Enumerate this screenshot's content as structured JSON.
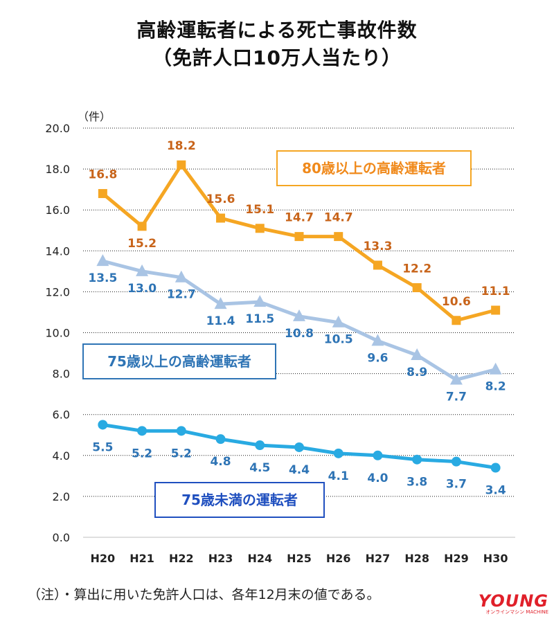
{
  "title": {
    "line1": "高齢運転者による死亡事故件数",
    "line2": "（免許人口10万人当たり）"
  },
  "note": "（注）・算出に用いた免許人口は、各年12月末の値である。",
  "logo": {
    "main": "YOUNG",
    "sub": "オンラインマシン MACHINE"
  },
  "chart_data": {
    "type": "line",
    "y_unit_label": "（件）",
    "ylim": [
      0,
      20
    ],
    "y_ticks": [
      "0.0",
      "2.0",
      "4.0",
      "6.0",
      "8.0",
      "10.0",
      "12.0",
      "14.0",
      "16.0",
      "18.0",
      "20.0"
    ],
    "grid": true,
    "categories": [
      "H20",
      "H21",
      "H22",
      "H23",
      "H24",
      "H25",
      "H26",
      "H27",
      "H28",
      "H29",
      "H30"
    ],
    "series": [
      {
        "name": "80歳以上の高齢運転者",
        "color": "#f5a623",
        "label_color": "#c8641a",
        "marker": "square",
        "values": [
          16.8,
          15.2,
          18.2,
          15.6,
          15.1,
          14.7,
          14.7,
          13.3,
          12.2,
          10.6,
          11.1
        ],
        "labels": [
          "16.8",
          "15.2",
          "18.2",
          "15.6",
          "15.1",
          "14.7",
          "14.7",
          "13.3",
          "12.2",
          "10.6",
          "11.1"
        ]
      },
      {
        "name": "75歳以上の高齢運転者",
        "color": "#a9c4e4",
        "label_color": "#2e74b5",
        "marker": "triangle",
        "values": [
          13.5,
          13.0,
          12.7,
          11.4,
          11.5,
          10.8,
          10.5,
          9.6,
          8.9,
          7.7,
          8.2
        ],
        "labels": [
          "13.5",
          "13.0",
          "12.7",
          "11.4",
          "11.5",
          "10.8",
          "10.5",
          "9.6",
          "8.9",
          "7.7",
          "8.2"
        ]
      },
      {
        "name": "75歳未満の運転者",
        "color": "#29aae2",
        "label_color": "#2e74b5",
        "marker": "circle",
        "values": [
          5.5,
          5.2,
          5.2,
          4.8,
          4.5,
          4.4,
          4.1,
          4.0,
          3.8,
          3.7,
          3.4
        ],
        "labels": [
          "5.5",
          "5.2",
          "5.2",
          "4.8",
          "4.5",
          "4.4",
          "4.1",
          "4.0",
          "3.8",
          "3.7",
          "3.4"
        ]
      }
    ],
    "legend_boxes": [
      {
        "series": 0,
        "text": "80歳以上の高齢運転者",
        "border": "#f5a623",
        "text_color": "#f08a1c"
      },
      {
        "series": 1,
        "text": "75歳以上の高齢運転者",
        "border": "#2e74b5",
        "text_color": "#2e74b5"
      },
      {
        "series": 2,
        "text": "75歳未満の運転者",
        "border": "#1f4fbf",
        "text_color": "#1f4fbf"
      }
    ]
  }
}
